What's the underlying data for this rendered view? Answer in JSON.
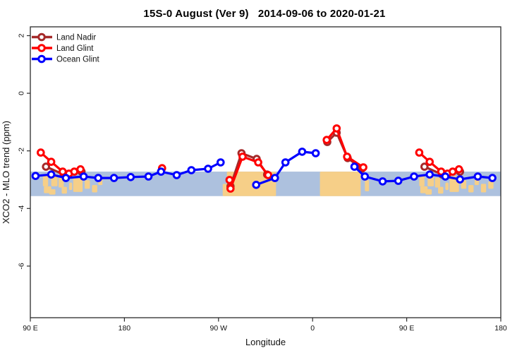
{
  "title": "15S-0 August (Ver 9)   2014-09-06 to 2020-01-21",
  "chart_data": {
    "type": "line",
    "title": "15S-0 August (Ver 9)   2014-09-06 to 2020-01-21",
    "xlabel": "Longitude",
    "ylabel": "XCO2 - MLO trend (ppm)",
    "xlim": [
      90,
      540
    ],
    "ylim": [
      -7.8,
      2.3
    ],
    "grid": false,
    "legend_position": "top-left",
    "x_ticks": [
      {
        "lon": 90,
        "label": "90 E"
      },
      {
        "lon": 180,
        "label": "180"
      },
      {
        "lon": 270,
        "label": "90 W"
      },
      {
        "lon": 360,
        "label": "0"
      },
      {
        "lon": 450,
        "label": "90 E"
      },
      {
        "lon": 540,
        "label": "180"
      }
    ],
    "y_ticks": [
      {
        "v": 2,
        "label": "2"
      },
      {
        "v": 0,
        "label": "0"
      },
      {
        "v": -2,
        "label": "-2"
      },
      {
        "v": -4,
        "label": "-4"
      },
      {
        "v": -6,
        "label": "-6"
      }
    ],
    "band": {
      "top": -2.72,
      "bottom": -3.57,
      "ocean_color": "#ADC1DE",
      "land_color": "#F6CF88",
      "land_patches": [
        [
          102,
          107,
          0.15,
          0.45
        ],
        [
          103,
          110,
          0.6,
          0.28
        ],
        [
          110,
          116,
          0.1,
          0.5
        ],
        [
          108,
          114,
          0.72,
          0.22
        ],
        [
          117,
          122,
          0.25,
          0.4
        ],
        [
          120,
          125,
          0.62,
          0.28
        ],
        [
          127,
          130,
          0.45,
          0.3
        ],
        [
          131,
          140,
          0.18,
          0.65
        ],
        [
          142,
          147,
          0.35,
          0.35
        ],
        [
          149,
          154,
          0.55,
          0.3
        ],
        [
          155,
          159,
          0.3,
          0.25
        ],
        [
          274,
          279,
          0.5,
          0.5
        ],
        [
          278,
          325,
          0,
          1
        ],
        [
          367,
          406,
          0,
          1
        ],
        [
          410,
          414,
          0.35,
          0.45
        ],
        [
          462,
          467,
          0.15,
          0.45
        ],
        [
          463,
          470,
          0.6,
          0.28
        ],
        [
          470,
          476,
          0.1,
          0.5
        ],
        [
          468,
          474,
          0.72,
          0.22
        ],
        [
          477,
          482,
          0.25,
          0.4
        ],
        [
          480,
          485,
          0.62,
          0.28
        ],
        [
          487,
          490,
          0.45,
          0.3
        ],
        [
          491,
          500,
          0.18,
          0.65
        ],
        [
          502,
          507,
          0.35,
          0.35
        ],
        [
          509,
          514,
          0.55,
          0.3
        ],
        [
          515,
          519,
          0.3,
          0.25
        ],
        [
          521,
          526,
          0.5,
          0.35
        ],
        [
          528,
          533,
          0.4,
          0.3
        ]
      ]
    },
    "series": [
      {
        "name": "Land Nadir",
        "color": "#A52A2A",
        "segments": [
          [
            [
              105,
              -2.55
            ],
            [
              122,
              -2.82
            ],
            [
              139,
              -2.72
            ]
          ],
          [
            [
              281.5,
              -3.23
            ],
            [
              292,
              -2.08
            ],
            [
              306.5,
              -2.28
            ],
            [
              316.5,
              -2.82
            ]
          ],
          [
            [
              374,
              -1.69
            ],
            [
              383,
              -1.37
            ],
            [
              393.5,
              -2.25
            ],
            [
              407,
              -2.62
            ]
          ],
          [
            [
              467,
              -2.55
            ],
            [
              484,
              -2.82
            ],
            [
              501,
              -2.72
            ]
          ]
        ]
      },
      {
        "name": "Land Glint",
        "color": "#FF0000",
        "segments": [
          [
            [
              100,
              -2.06
            ],
            [
              110,
              -2.38
            ],
            [
              121,
              -2.72
            ],
            [
              127,
              -2.79
            ],
            [
              132,
              -2.72
            ],
            [
              138,
              -2.64
            ]
          ],
          [
            [
              216,
              -2.6
            ]
          ],
          [
            [
              280.5,
              -3.01
            ],
            [
              281.5,
              -3.31
            ],
            [
              293,
              -2.2
            ],
            [
              308,
              -2.4
            ],
            [
              317.5,
              -2.84
            ]
          ],
          [
            [
              373.5,
              -1.62
            ],
            [
              383,
              -1.22
            ],
            [
              393,
              -2.2
            ],
            [
              408.5,
              -2.57
            ]
          ],
          [
            [
              462,
              -2.06
            ],
            [
              472,
              -2.38
            ],
            [
              483,
              -2.72
            ],
            [
              489,
              -2.79
            ],
            [
              494,
              -2.72
            ],
            [
              500,
              -2.64
            ]
          ]
        ]
      },
      {
        "name": "Ocean Glint",
        "color": "#0000FF",
        "segments": [
          [
            [
              95,
              -2.87
            ],
            [
              110,
              -2.82
            ],
            [
              124,
              -2.94
            ],
            [
              141,
              -2.89
            ],
            [
              155,
              -2.94
            ],
            [
              170,
              -2.94
            ],
            [
              186,
              -2.91
            ],
            [
              203,
              -2.89
            ],
            [
              215,
              -2.72
            ],
            [
              230,
              -2.84
            ],
            [
              244,
              -2.67
            ],
            [
              260,
              -2.62
            ],
            [
              272,
              -2.4
            ]
          ],
          [
            [
              306,
              -3.18
            ],
            [
              324,
              -2.94
            ],
            [
              334,
              -2.4
            ],
            [
              350,
              -2.03
            ],
            [
              363,
              -2.08
            ]
          ],
          [
            [
              400,
              -2.55
            ],
            [
              410,
              -2.89
            ],
            [
              427,
              -3.06
            ],
            [
              442,
              -3.04
            ],
            [
              457,
              -2.89
            ],
            [
              472,
              -2.82
            ],
            [
              487,
              -2.89
            ],
            [
              501,
              -2.99
            ],
            [
              518,
              -2.89
            ],
            [
              532,
              -2.94
            ]
          ]
        ]
      }
    ]
  }
}
